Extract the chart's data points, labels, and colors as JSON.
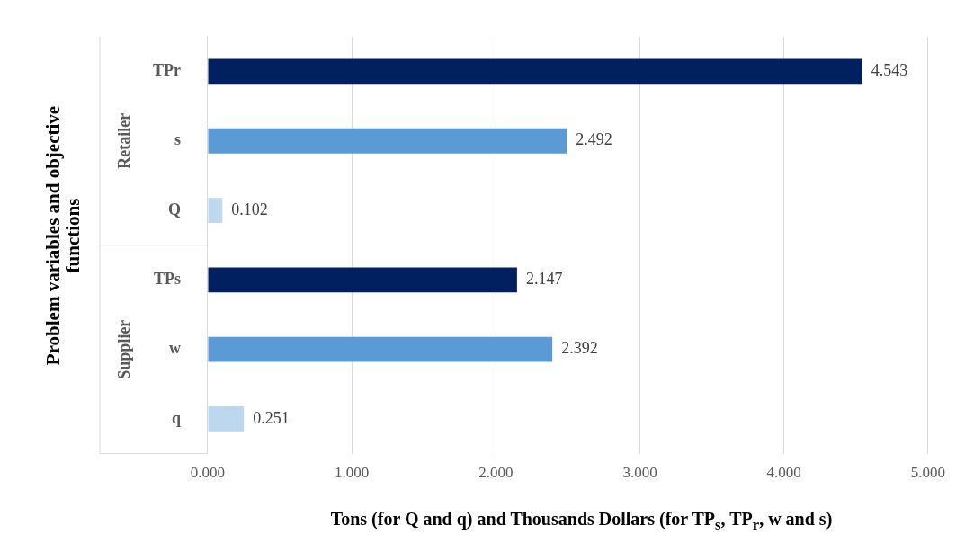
{
  "chart_data": {
    "type": "bar",
    "orientation": "horizontal",
    "xlabel": "Tons (for Q and q) and Thousands Dollars (for TP$_{s}$, TP$_{r}$, w and s)",
    "ylabel": "Problem variables and objective functions",
    "categories": [
      "TPr",
      "s",
      "Q",
      "TPs",
      "w",
      "q"
    ],
    "values": [
      4.543,
      2.492,
      0.102,
      2.147,
      2.392,
      0.251
    ],
    "colors": [
      "#002060",
      "#5b9bd5",
      "#bdd7ee",
      "#002060",
      "#5b9bd5",
      "#bdd7ee"
    ],
    "xlim": [
      0,
      5
    ],
    "xticks": [
      {
        "value": 0,
        "label": "0.000"
      },
      {
        "value": 1,
        "label": "1.000"
      },
      {
        "value": 2,
        "label": "2.000"
      },
      {
        "value": 3,
        "label": "3.000"
      },
      {
        "value": 4,
        "label": "4.000"
      },
      {
        "value": 5,
        "label": "5.000"
      }
    ],
    "grid": "x",
    "data_labels": true,
    "annotations": [
      "Retailer",
      "Supplier"
    ]
  }
}
